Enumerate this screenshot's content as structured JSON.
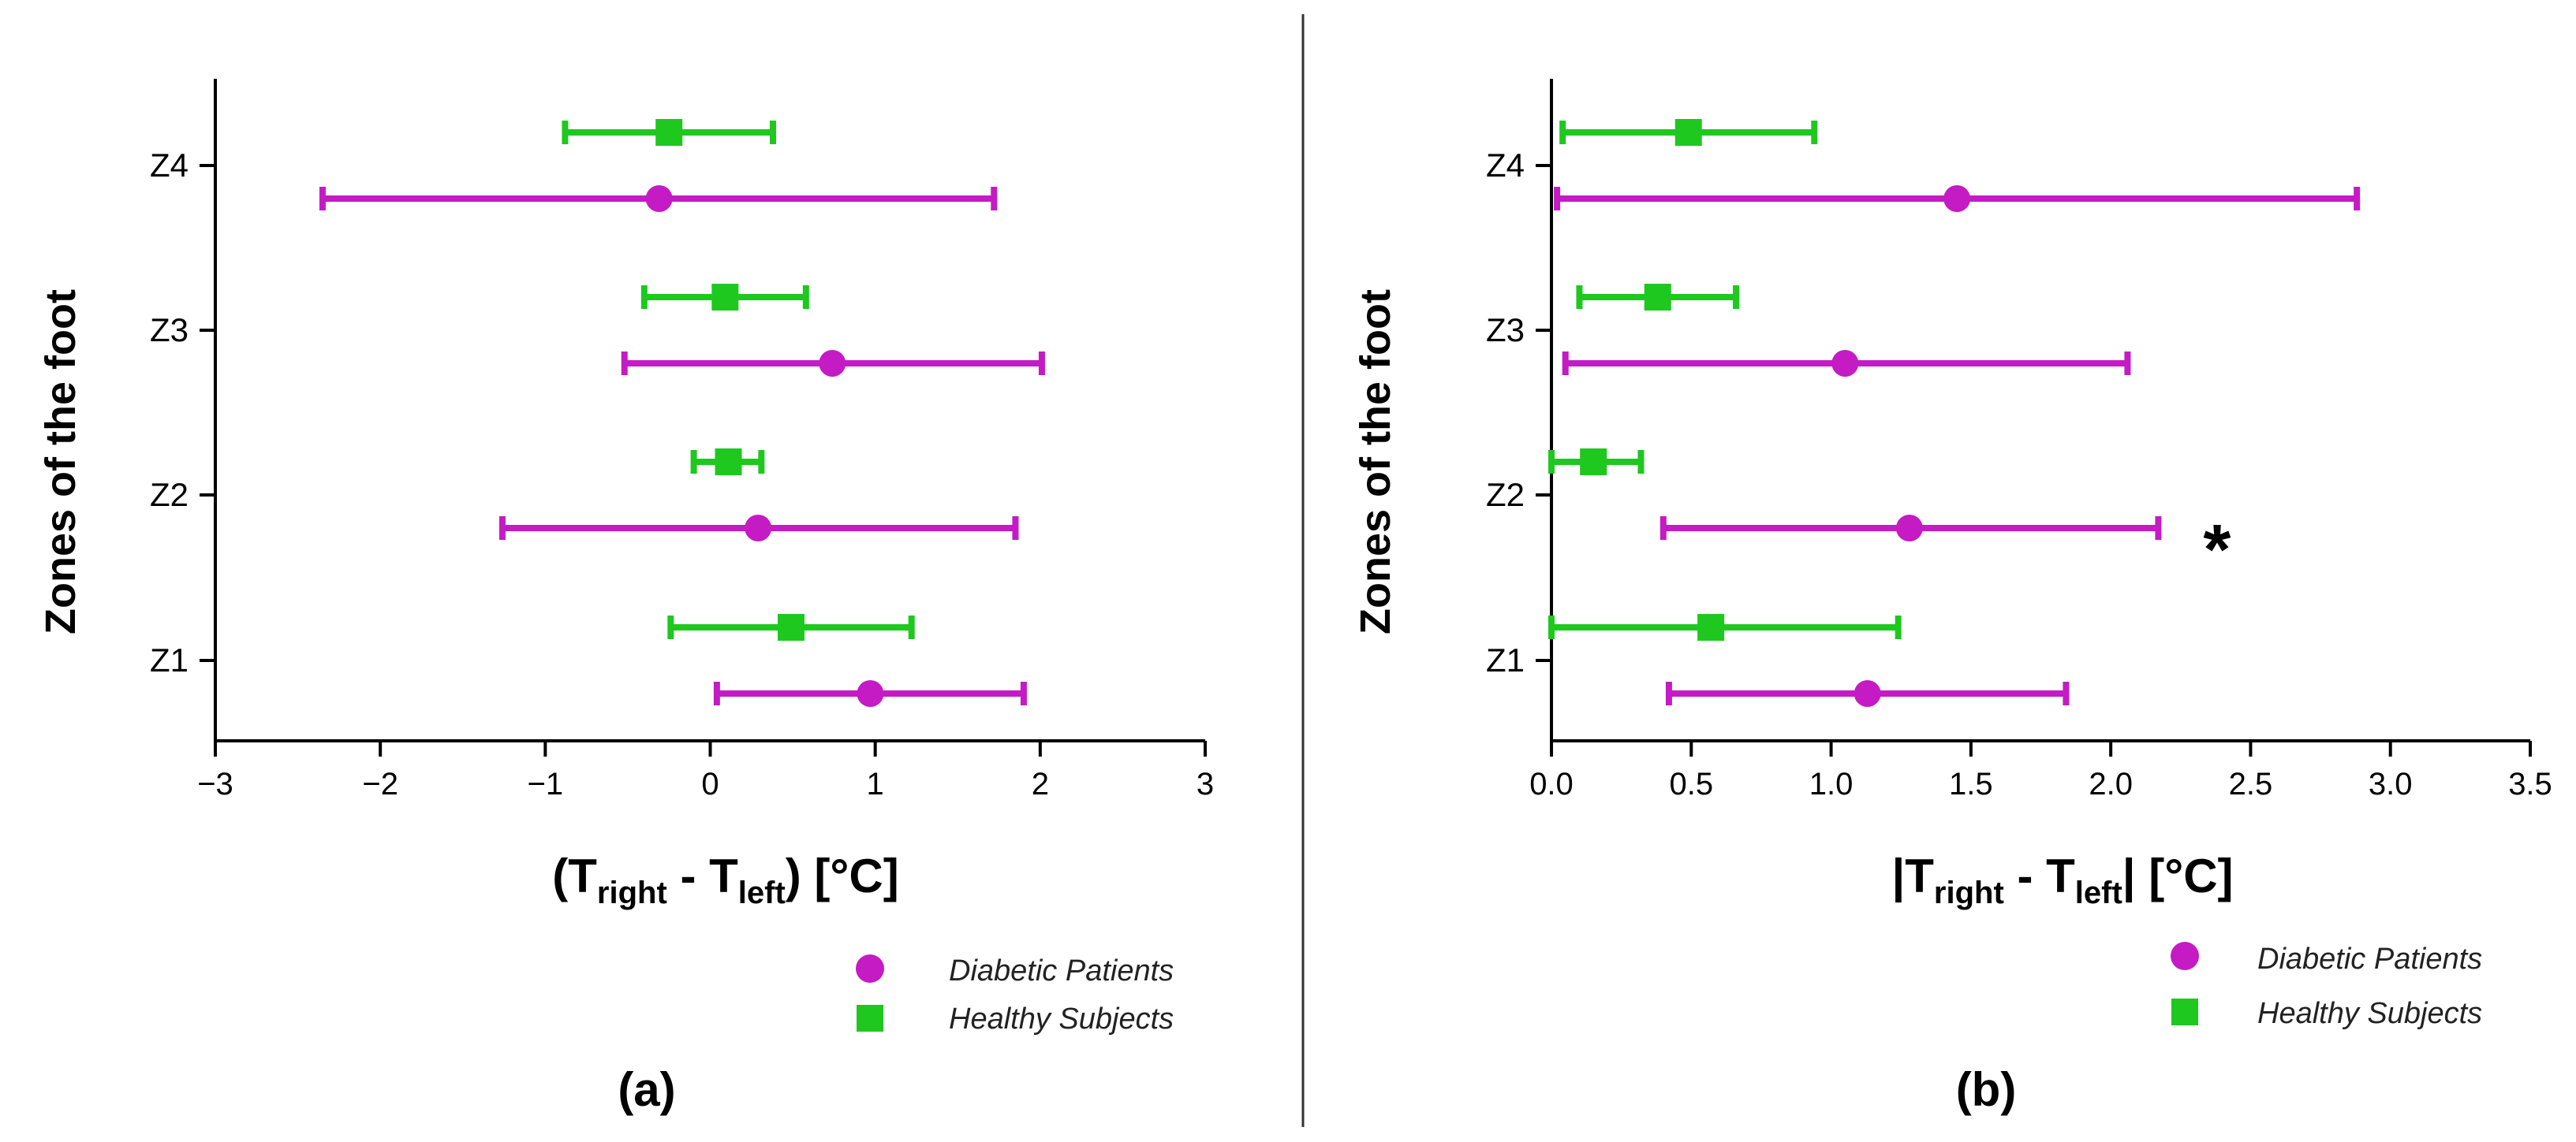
{
  "colors": {
    "diabetic": "#C41BC4",
    "healthy": "#1EC81E",
    "axis": "#000000",
    "divider": "#333333"
  },
  "legend": {
    "diabetic_label": "Diabetic Patients",
    "healthy_label": "Healthy Subjects"
  },
  "chart_data": [
    {
      "id": "a",
      "type": "errorbar",
      "panel_label": "(a)",
      "title": "",
      "ylabel": "Zones of the foot",
      "xlabel": {
        "prefix": "(T",
        "sub1": "right",
        "mid": " - T",
        "sub2": "left",
        "suffix": ") [°C]"
      },
      "categories": [
        "Z1",
        "Z2",
        "Z3",
        "Z4"
      ],
      "xlim": [
        -3,
        3
      ],
      "xticks": [
        -3,
        -2,
        -1,
        0,
        1,
        2,
        3
      ],
      "xtick_labels": [
        "−3",
        "−2",
        "−1",
        "0",
        "1",
        "2",
        "3"
      ],
      "series": [
        {
          "name": "Diabetic Patients",
          "marker": "circle",
          "points": [
            {
              "zone": "Z1",
              "mean": 0.97,
              "low": 0.04,
              "high": 1.9
            },
            {
              "zone": "Z2",
              "mean": 0.29,
              "low": -1.26,
              "high": 1.85
            },
            {
              "zone": "Z3",
              "mean": 0.74,
              "low": -0.52,
              "high": 2.01
            },
            {
              "zone": "Z4",
              "mean": -0.31,
              "low": -2.35,
              "high": 1.72
            }
          ]
        },
        {
          "name": "Healthy Subjects",
          "marker": "square",
          "points": [
            {
              "zone": "Z1",
              "mean": 0.49,
              "low": -0.24,
              "high": 1.22
            },
            {
              "zone": "Z2",
              "mean": 0.11,
              "low": -0.1,
              "high": 0.31
            },
            {
              "zone": "Z3",
              "mean": 0.09,
              "low": -0.4,
              "high": 0.58
            },
            {
              "zone": "Z4",
              "mean": -0.25,
              "low": -0.88,
              "high": 0.38
            }
          ]
        }
      ]
    },
    {
      "id": "b",
      "type": "errorbar",
      "panel_label": "(b)",
      "title": "",
      "ylabel": "Zones of the foot",
      "xlabel": {
        "prefix": "|T",
        "sub1": "right",
        "mid": " - T",
        "sub2": "left",
        "suffix": "| [°C]"
      },
      "categories": [
        "Z1",
        "Z2",
        "Z3",
        "Z4"
      ],
      "xlim": [
        0,
        3.5
      ],
      "xticks": [
        0,
        0.5,
        1,
        1.5,
        2,
        2.5,
        3,
        3.5
      ],
      "xtick_labels": [
        "0.0",
        "0.5",
        "1.0",
        "1.5",
        "2.0",
        "2.5",
        "3.0",
        "3.5"
      ],
      "annotation": {
        "text": "*",
        "zone": "Z2",
        "x": 2.38
      },
      "series": [
        {
          "name": "Diabetic Patients",
          "marker": "circle",
          "points": [
            {
              "zone": "Z1",
              "mean": 1.13,
              "low": 0.42,
              "high": 1.84
            },
            {
              "zone": "Z2",
              "mean": 1.28,
              "low": 0.4,
              "high": 2.17
            },
            {
              "zone": "Z3",
              "mean": 1.05,
              "low": 0.05,
              "high": 2.06
            },
            {
              "zone": "Z4",
              "mean": 1.45,
              "low": 0.02,
              "high": 2.88
            }
          ]
        },
        {
          "name": "Healthy Subjects",
          "marker": "square",
          "points": [
            {
              "zone": "Z1",
              "mean": 0.57,
              "low": 0.0,
              "high": 1.24
            },
            {
              "zone": "Z2",
              "mean": 0.15,
              "low": 0.0,
              "high": 0.32
            },
            {
              "zone": "Z3",
              "mean": 0.38,
              "low": 0.1,
              "high": 0.66
            },
            {
              "zone": "Z4",
              "mean": 0.49,
              "low": 0.04,
              "high": 0.94
            }
          ]
        }
      ]
    }
  ]
}
